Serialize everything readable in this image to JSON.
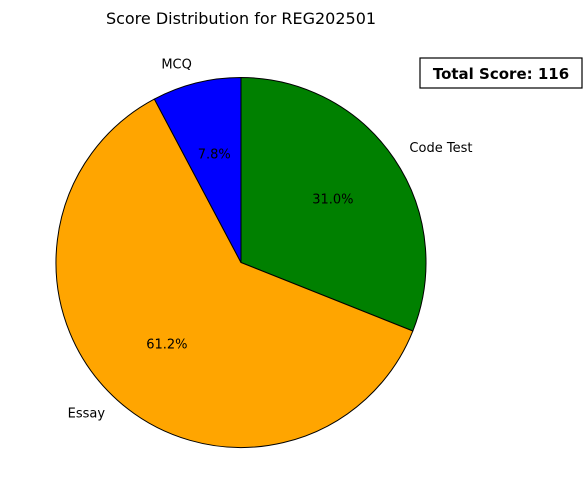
{
  "chart_data": {
    "type": "pie",
    "title": "Score Distribution for REG202501",
    "categories": [
      "Code Test",
      "Essay",
      "MCQ"
    ],
    "values": [
      36,
      71,
      9
    ],
    "percent_labels": [
      "31.0%",
      "61.2%",
      "7.8%"
    ],
    "colors": [
      "#008000",
      "#ffa500",
      "#0000ff"
    ],
    "start_angle_deg": 90,
    "direction": "clockwise",
    "edge_color": "#000000",
    "legend": "none",
    "annotation": "Total Score: 116"
  }
}
